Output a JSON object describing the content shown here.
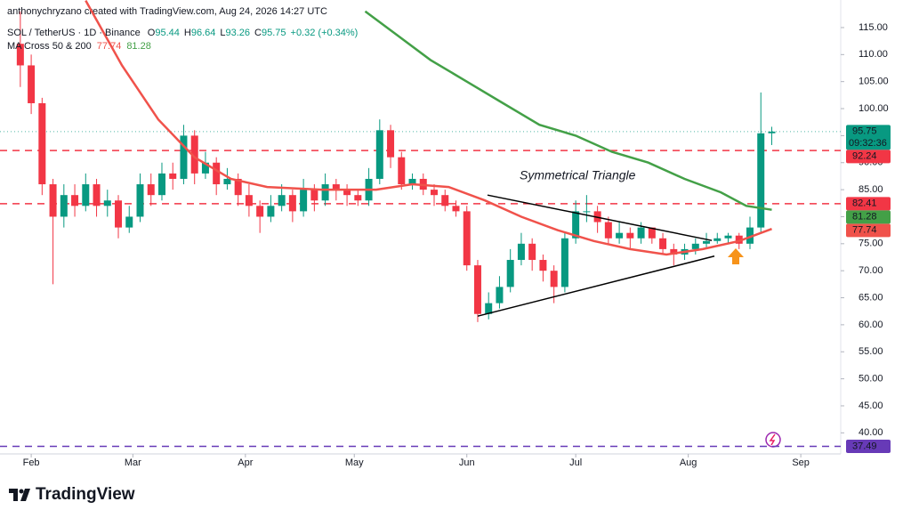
{
  "header": {
    "credit": "anthonychryzano created with TradingView.com, Aug 24, 2026 14:27 UTC"
  },
  "footer": {
    "brand": "TradingView"
  },
  "chart_data": {
    "type": "candlestick",
    "symbol": "SOL / TetherUS · 1D · Binance",
    "legend_fields": [
      "O",
      "H",
      "L",
      "C"
    ],
    "change": "+0.32 (+0.34%)",
    "indicator": "MA Cross 50 & 200",
    "annotation": "Symmetrical Triangle",
    "countdown": "09:32:36",
    "up_color": "#089981",
    "down_color": "#f23645",
    "xlim": [
      -8.6,
      223
    ],
    "xticks": [
      {
        "value": 0,
        "label": "Feb"
      },
      {
        "value": 28,
        "label": "Mar"
      },
      {
        "value": 59,
        "label": "Apr"
      },
      {
        "value": 89,
        "label": "May"
      },
      {
        "value": 120,
        "label": "Jun"
      },
      {
        "value": 150,
        "label": "Jul"
      },
      {
        "value": 181,
        "label": "Aug"
      },
      {
        "value": 212,
        "label": "Sep"
      }
    ],
    "ylim": [
      36.1,
      120.1
    ],
    "yticks": [
      {
        "value": 40,
        "label": "40.00"
      },
      {
        "value": 45,
        "label": "45.00"
      },
      {
        "value": 50,
        "label": "50.00"
      },
      {
        "value": 55,
        "label": "55.00"
      },
      {
        "value": 60,
        "label": "60.00"
      },
      {
        "value": 65,
        "label": "65.00"
      },
      {
        "value": 70,
        "label": "70.00"
      },
      {
        "value": 75,
        "label": "75.00"
      },
      {
        "value": 80,
        "label": "80.00"
      },
      {
        "value": 85,
        "label": "85.00"
      },
      {
        "value": 90,
        "label": "90.00"
      },
      {
        "value": 95,
        "label": "95.00"
      },
      {
        "value": 100,
        "label": "100.00"
      },
      {
        "value": 105,
        "label": "105.00"
      },
      {
        "value": 110,
        "label": "110.00"
      },
      {
        "value": 115,
        "label": "115.00"
      }
    ],
    "grid": false,
    "x": [
      -3,
      0,
      3,
      6,
      9,
      12,
      15,
      18,
      21,
      24,
      27,
      30,
      33,
      36,
      39,
      42,
      45,
      48,
      51,
      54,
      57,
      60,
      63,
      66,
      69,
      72,
      75,
      78,
      81,
      84,
      87,
      90,
      93,
      96,
      99,
      102,
      105,
      108,
      111,
      114,
      117,
      120,
      123,
      126,
      129,
      132,
      135,
      138,
      141,
      144,
      147,
      150,
      153,
      156,
      159,
      162,
      165,
      168,
      171,
      174,
      177,
      180,
      183,
      186,
      189,
      192,
      195,
      198,
      201,
      204
    ],
    "open": [
      112,
      108,
      101,
      86,
      80,
      84,
      82,
      86,
      82,
      83,
      78,
      80,
      86,
      84,
      88,
      87,
      95,
      88,
      90,
      86,
      87,
      84,
      82,
      80,
      82,
      84,
      81,
      85,
      83,
      86,
      85,
      84,
      83,
      87,
      96,
      91,
      86,
      87,
      85,
      84,
      82,
      81,
      71,
      62,
      64,
      67,
      72,
      75,
      72,
      70,
      67,
      76,
      81,
      81,
      79,
      76,
      77,
      76,
      78,
      76,
      74,
      73,
      74,
      75,
      75.5,
      76,
      76.5,
      75,
      78,
      95.44
    ],
    "high": [
      118,
      110,
      102,
      87,
      86,
      86,
      88,
      87,
      85,
      84,
      82,
      88,
      88,
      90,
      90,
      97,
      96,
      92,
      91,
      89,
      88,
      86,
      83,
      84,
      86,
      85,
      87,
      86,
      88,
      87,
      86,
      85,
      89,
      98,
      97,
      92,
      88,
      88,
      86,
      85,
      83,
      82,
      72,
      66,
      69,
      74,
      77,
      76,
      73,
      71,
      77,
      83,
      84,
      82,
      80,
      79,
      78,
      79,
      78,
      77,
      75,
      75,
      76,
      77,
      77,
      77,
      77,
      80,
      103,
      96.64
    ],
    "low": [
      104,
      99,
      84,
      67.5,
      78,
      80,
      81,
      80,
      80,
      76,
      77,
      79,
      82,
      83,
      85,
      86,
      86,
      87,
      84,
      85,
      82,
      80,
      77,
      79,
      81,
      79,
      80,
      81,
      82,
      83,
      82,
      82,
      82,
      86,
      89,
      85,
      85,
      84,
      82,
      81,
      80,
      70,
      60.5,
      61,
      63,
      66,
      71,
      70,
      68,
      64,
      66,
      75,
      79,
      77,
      75,
      75,
      74,
      75,
      75,
      73,
      71,
      72,
      73,
      74,
      75,
      75,
      74,
      74,
      77,
      93.26
    ],
    "close": [
      108,
      101,
      86,
      80,
      84,
      82,
      86,
      82,
      83,
      78,
      80,
      86,
      84,
      88,
      87,
      95,
      88,
      90,
      86,
      87,
      84,
      82,
      80,
      82,
      84,
      81,
      85,
      83,
      86,
      85,
      84,
      83,
      87,
      96,
      91,
      86,
      87,
      85,
      84,
      82,
      81,
      71,
      62,
      64,
      67,
      72,
      75,
      72,
      70,
      67,
      76,
      81,
      81,
      79,
      76,
      77,
      76,
      78,
      76,
      74,
      73,
      74,
      75,
      75.5,
      76,
      76.5,
      75,
      78,
      95.43,
      95.75
    ],
    "series": [
      {
        "color": "#f0524b",
        "x": [
          15,
          25,
          35,
          45,
          55,
          65,
          80,
          95,
          105,
          115,
          125,
          135,
          145,
          155,
          165,
          175,
          185,
          195,
          204
        ],
        "values": [
          120,
          108,
          98,
          91,
          87,
          85.5,
          85,
          85,
          86,
          85.5,
          83,
          80,
          77.5,
          75.5,
          74,
          73,
          74,
          75.5,
          77.74
        ]
      },
      {
        "color": "#43a047",
        "x": [
          92,
          100,
          110,
          120,
          130,
          140,
          150,
          160,
          170,
          180,
          190,
          197,
          204
        ],
        "values": [
          118,
          114,
          109,
          105,
          101,
          97,
          95,
          92,
          90,
          87,
          84.5,
          82,
          81.28
        ]
      }
    ],
    "trendlines": [
      {
        "color": "#000000",
        "x": [
          125.7,
          187.5
        ],
        "y": [
          84,
          75.6
        ]
      },
      {
        "color": "#000000",
        "x": [
          123,
          188.2
        ],
        "y": [
          61.6,
          72.7
        ]
      }
    ],
    "hlines": [
      {
        "value": 92.24,
        "color": "#f23645"
      },
      {
        "value": 82.41,
        "color": "#f23645"
      },
      {
        "value": 37.49,
        "color": "#673ab7"
      }
    ]
  }
}
